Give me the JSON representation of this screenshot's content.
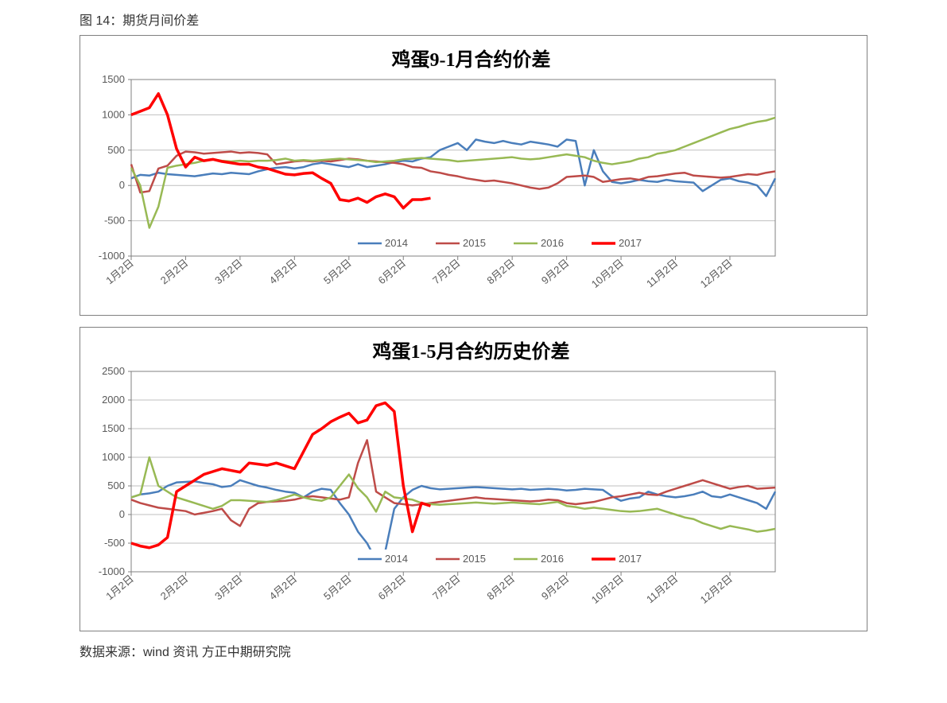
{
  "figure_caption": "图 14：期货月间价差",
  "source_line": "数据来源：wind 资讯 方正中期研究院",
  "x_categories": [
    "1月2日",
    "2月2日",
    "3月2日",
    "4月2日",
    "5月2日",
    "6月2日",
    "7月2日",
    "8月2日",
    "9月2日",
    "10月2日",
    "11月2日",
    "12月2日"
  ],
  "legend_years": [
    "2014",
    "2015",
    "2016",
    "2017"
  ],
  "colors": {
    "s2014": "#4a7ebb",
    "s2015": "#be4b48",
    "s2016": "#98b954",
    "s2017": "#ff0000",
    "grid": "#bfbfbf",
    "axis": "#808080",
    "plot_border": "#808080",
    "bg": "#ffffff"
  },
  "line_width": 2.5,
  "line_width_2017": 3.5,
  "chart1": {
    "title": "鸡蛋9-1月合约价差",
    "ylim": [
      -1000,
      1500
    ],
    "ytick_step": 500,
    "series": {
      "s2014": [
        100,
        150,
        140,
        180,
        160,
        150,
        140,
        130,
        150,
        170,
        160,
        180,
        170,
        160,
        200,
        230,
        250,
        260,
        240,
        260,
        300,
        320,
        300,
        280,
        260,
        300,
        260,
        280,
        300,
        330,
        350,
        340,
        380,
        400,
        500,
        550,
        600,
        500,
        650,
        620,
        600,
        630,
        600,
        580,
        620,
        600,
        580,
        550,
        650,
        630,
        0,
        500,
        200,
        50,
        30,
        50,
        80,
        60,
        50,
        80,
        60,
        50,
        40,
        -80,
        0,
        80,
        100,
        60,
        40,
        0,
        -150,
        100
      ],
      "s2015": [
        300,
        -100,
        -80,
        240,
        280,
        420,
        480,
        470,
        450,
        460,
        470,
        480,
        460,
        470,
        460,
        440,
        300,
        320,
        340,
        350,
        340,
        350,
        340,
        360,
        380,
        370,
        350,
        340,
        330,
        320,
        300,
        260,
        250,
        200,
        180,
        150,
        130,
        100,
        80,
        60,
        70,
        50,
        30,
        0,
        -30,
        -50,
        -30,
        30,
        120,
        130,
        140,
        120,
        50,
        70,
        90,
        100,
        80,
        120,
        130,
        150,
        170,
        180,
        140,
        130,
        120,
        110,
        120,
        140,
        160,
        150,
        180,
        200
      ],
      "s2016": [
        250,
        0,
        -600,
        -300,
        250,
        280,
        300,
        320,
        350,
        370,
        350,
        340,
        350,
        340,
        350,
        350,
        360,
        380,
        350,
        360,
        350,
        360,
        370,
        380,
        370,
        360,
        350,
        330,
        340,
        350,
        370,
        380,
        390,
        380,
        370,
        360,
        340,
        350,
        360,
        370,
        380,
        390,
        400,
        380,
        370,
        380,
        400,
        420,
        440,
        420,
        400,
        350,
        320,
        300,
        320,
        340,
        380,
        400,
        450,
        470,
        500,
        550,
        600,
        650,
        700,
        750,
        800,
        830,
        870,
        900,
        920,
        960
      ],
      "s2017": [
        1000,
        1050,
        1100,
        1300,
        1000,
        520,
        260,
        400,
        350,
        370,
        340,
        320,
        300,
        300,
        260,
        240,
        200,
        160,
        150,
        170,
        180,
        100,
        30,
        -200,
        -220,
        -180,
        -240,
        -160,
        -120,
        -160,
        -320,
        -200,
        -200,
        -180
      ]
    }
  },
  "chart2": {
    "title": "鸡蛋1-5月合约历史价差",
    "ylim": [
      -1000,
      2500
    ],
    "ytick_step": 500,
    "series": {
      "s2014": [
        300,
        350,
        370,
        400,
        500,
        560,
        570,
        580,
        550,
        530,
        480,
        500,
        600,
        550,
        500,
        470,
        430,
        400,
        380,
        300,
        400,
        450,
        430,
        200,
        0,
        -300,
        -500,
        -800,
        -650,
        100,
        300,
        430,
        500,
        460,
        440,
        450,
        460,
        470,
        480,
        470,
        460,
        450,
        440,
        450,
        430,
        440,
        450,
        440,
        420,
        430,
        450,
        440,
        430,
        320,
        240,
        280,
        300,
        400,
        350,
        320,
        300,
        320,
        350,
        400,
        320,
        300,
        350,
        300,
        250,
        200,
        100,
        400
      ],
      "s2015": [
        260,
        200,
        160,
        120,
        100,
        80,
        60,
        0,
        30,
        60,
        100,
        -100,
        -200,
        100,
        200,
        220,
        230,
        240,
        260,
        300,
        320,
        300,
        280,
        260,
        300,
        900,
        1300,
        400,
        300,
        200,
        180,
        160,
        180,
        200,
        220,
        240,
        260,
        280,
        300,
        280,
        270,
        260,
        250,
        240,
        230,
        240,
        260,
        250,
        200,
        180,
        200,
        220,
        260,
        300,
        320,
        350,
        380,
        350,
        340,
        400,
        450,
        500,
        550,
        600,
        550,
        500,
        450,
        480,
        500,
        450,
        460,
        470
      ],
      "s2016": [
        300,
        350,
        1000,
        500,
        400,
        300,
        250,
        200,
        150,
        100,
        150,
        250,
        250,
        240,
        230,
        220,
        250,
        300,
        350,
        300,
        260,
        240,
        300,
        500,
        700,
        460,
        300,
        50,
        400,
        300,
        280,
        260,
        200,
        180,
        170,
        180,
        190,
        200,
        210,
        200,
        190,
        200,
        210,
        200,
        190,
        180,
        200,
        220,
        150,
        130,
        100,
        120,
        100,
        80,
        60,
        50,
        60,
        80,
        100,
        50,
        0,
        -50,
        -80,
        -150,
        -200,
        -250,
        -200,
        -230,
        -260,
        -300,
        -280,
        -250
      ],
      "s2017": [
        -500,
        -550,
        -580,
        -530,
        -400,
        400,
        500,
        600,
        700,
        750,
        800,
        770,
        740,
        900,
        880,
        860,
        900,
        850,
        800,
        1100,
        1400,
        1500,
        1620,
        1700,
        1770,
        1600,
        1650,
        1900,
        1950,
        1800,
        500,
        -300,
        200,
        150
      ]
    }
  }
}
